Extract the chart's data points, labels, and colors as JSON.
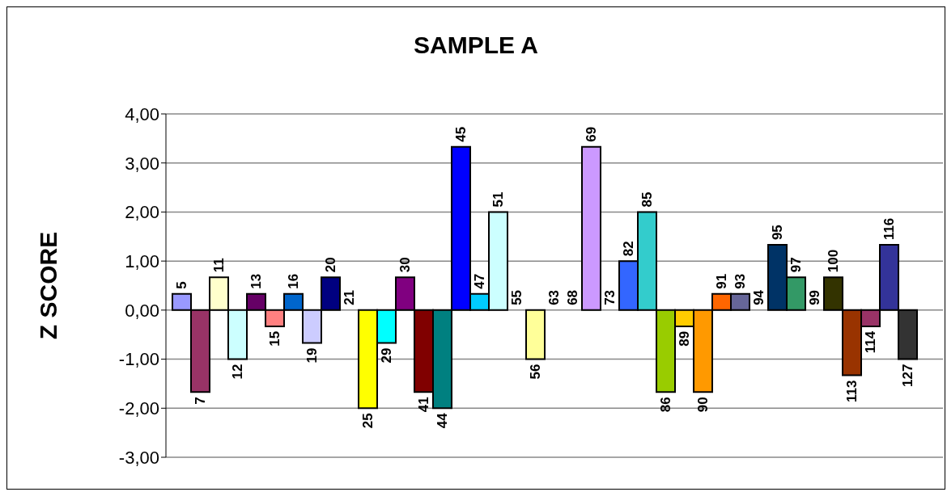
{
  "chart_data": {
    "type": "bar",
    "title": "SAMPLE A",
    "ylabel": "Z SCORE",
    "categories": [
      "5",
      "7",
      "11",
      "12",
      "13",
      "15",
      "16",
      "19",
      "20",
      "21",
      "25",
      "29",
      "30",
      "41",
      "44",
      "45",
      "47",
      "51",
      "55",
      "56",
      "63",
      "68",
      "69",
      "73",
      "82",
      "85",
      "86",
      "89",
      "90",
      "91",
      "93",
      "94",
      "95",
      "97",
      "99",
      "100",
      "113",
      "114",
      "116",
      "127"
    ],
    "values": [
      0.33,
      -1.67,
      0.67,
      -1,
      0.33,
      -0.33,
      0.33,
      -0.67,
      0.67,
      0,
      -2,
      -0.67,
      0.67,
      -1.67,
      -2,
      3.33,
      0.33,
      2,
      0,
      -1,
      0,
      0,
      3.33,
      0,
      1,
      2,
      -1.67,
      -0.33,
      -1.67,
      0.33,
      0.33,
      0,
      1.33,
      0.67,
      0,
      0.67,
      -1.33,
      -0.33,
      1.33,
      -1
    ],
    "colors": [
      "#9999ff",
      "#993366",
      "#ffffcc",
      "#ccffff",
      "#660066",
      "#ff8080",
      "#0066cc",
      "#ccccff",
      "#000080",
      "#ff00ff",
      "#ffff00",
      "#00ffff",
      "#800080",
      "#800000",
      "#008080",
      "#0000ff",
      "#00ccff",
      "#ccffff",
      "#ccffcc",
      "#ffff99",
      "#99ccff",
      "#ff99cc",
      "#cc99ff",
      "#ffcc99",
      "#3366ff",
      "#33cccc",
      "#99cc00",
      "#ffcc00",
      "#ff9900",
      "#ff6600",
      "#666699",
      "#969696",
      "#003366",
      "#339966",
      "#003300",
      "#333300",
      "#993300",
      "#993366",
      "#333399",
      "#333333"
    ],
    "ylim": [
      -3,
      4
    ],
    "yticks": [
      {
        "value": -3,
        "label": "-3,00"
      },
      {
        "value": -2,
        "label": "-2,00"
      },
      {
        "value": -1,
        "label": "-1,00"
      },
      {
        "value": 0,
        "label": "0,00"
      },
      {
        "value": 1,
        "label": "1,00"
      },
      {
        "value": 2,
        "label": "2,00"
      },
      {
        "value": 3,
        "label": "3,00"
      },
      {
        "value": 4,
        "label": "4,00"
      }
    ],
    "grid": "y"
  }
}
